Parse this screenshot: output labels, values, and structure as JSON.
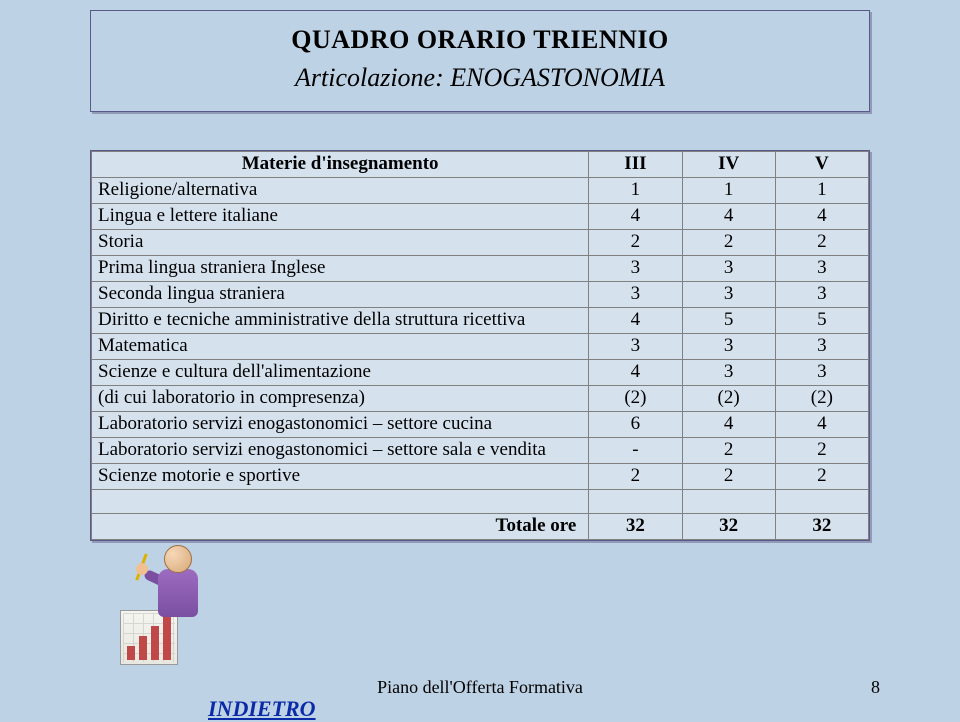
{
  "title": {
    "main": "QUADRO ORARIO  TRIENNIO",
    "sub": "Articolazione: ENOGASTONOMIA"
  },
  "table": {
    "headers": [
      "Materie d'insegnamento",
      "III",
      "IV",
      "V"
    ],
    "rows": [
      {
        "subject": "Religione/alternativa",
        "c3": "1",
        "c4": "1",
        "c5": "1"
      },
      {
        "subject": "Lingua e lettere italiane",
        "c3": "4",
        "c4": "4",
        "c5": "4"
      },
      {
        "subject": "Storia",
        "c3": "2",
        "c4": "2",
        "c5": "2"
      },
      {
        "subject": "Prima lingua straniera Inglese",
        "c3": "3",
        "c4": "3",
        "c5": "3"
      },
      {
        "subject": "Seconda lingua straniera",
        "c3": "3",
        "c4": "3",
        "c5": "3"
      },
      {
        "subject": "Diritto e tecniche amministrative della struttura ricettiva",
        "c3": "4",
        "c4": "5",
        "c5": "5"
      },
      {
        "subject": "Matematica",
        "c3": "3",
        "c4": "3",
        "c5": "3"
      },
      {
        "subject": "Scienze e cultura dell'alimentazione",
        "c3": "4",
        "c4": "3",
        "c5": "3"
      },
      {
        "subject": "(di cui laboratorio in compresenza)",
        "c3": "(2)",
        "c4": "(2)",
        "c5": "(2)"
      },
      {
        "subject": "Laboratorio servizi enogastonomici – settore cucina",
        "c3": "6",
        "c4": "4",
        "c5": "4"
      },
      {
        "subject": "Laboratorio servizi enogastonomici – settore sala e vendita",
        "c3": "-",
        "c4": "2",
        "c5": "2"
      },
      {
        "subject": "Scienze motorie e sportive",
        "c3": "2",
        "c4": "2",
        "c5": "2"
      },
      {
        "subject": "",
        "c3": "",
        "c4": "",
        "c5": ""
      }
    ],
    "total": {
      "label": "Totale ore",
      "c3": "32",
      "c4": "32",
      "c5": "32"
    }
  },
  "footer": {
    "center": "Piano dell'Offerta Formativa",
    "page": "8",
    "back": "INDIETRO"
  }
}
